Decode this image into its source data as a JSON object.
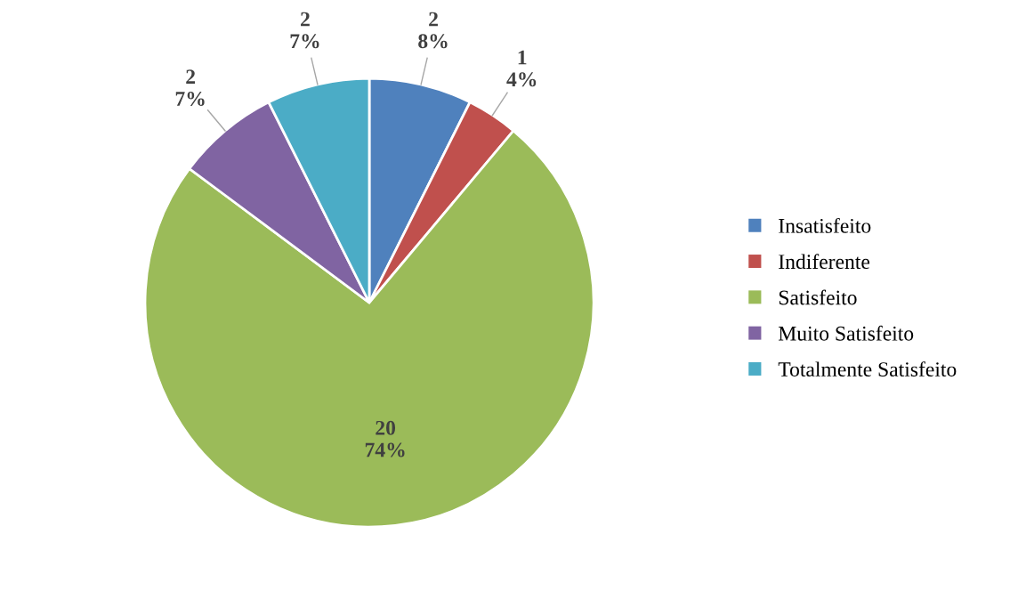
{
  "chart_data": {
    "type": "pie",
    "categories": [
      "Insatisfeito",
      "Indiferente",
      "Satisfeito",
      "Muito Satisfeito",
      "Totalmente Satisfeito"
    ],
    "values": [
      2,
      1,
      20,
      2,
      2
    ],
    "value_labels": [
      "2\n8%",
      "1\n4%",
      "20\n74%",
      "2\n7%",
      "2\n7%"
    ],
    "colors": [
      "#4f81bd",
      "#c0504d",
      "#9bbb59",
      "#8064a2",
      "#4bacc6"
    ],
    "legend": "right"
  }
}
